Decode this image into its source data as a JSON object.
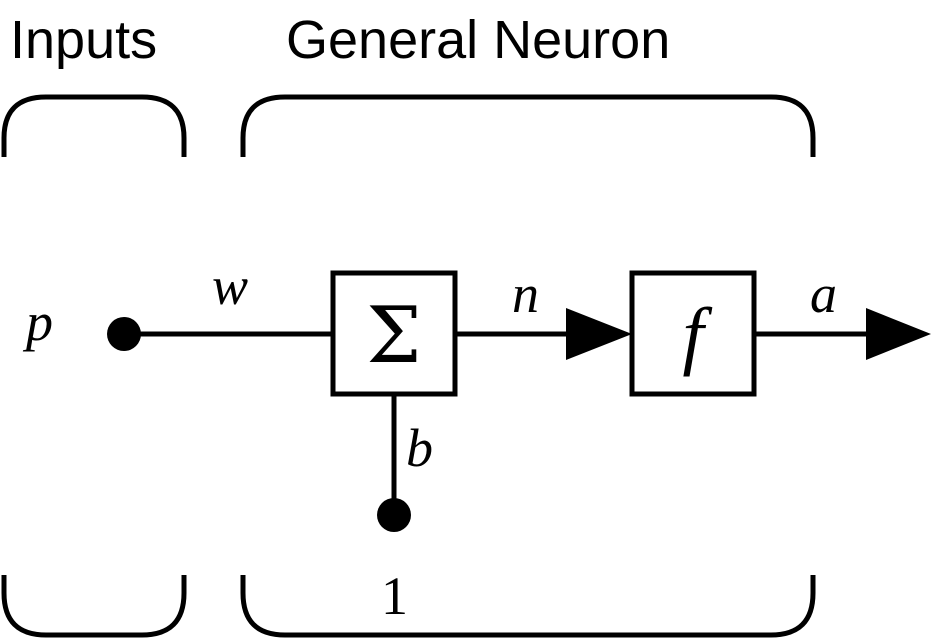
{
  "headings": {
    "inputs": "Inputs",
    "general_neuron": "General Neuron"
  },
  "labels": {
    "input": "p",
    "weight": "w",
    "summer_symbol": "Σ",
    "net_input": "n",
    "transfer_function": "f",
    "output": "a",
    "bias": "b",
    "bias_input": "1"
  },
  "colors": {
    "ink": "#000000",
    "background": "#ffffff"
  }
}
